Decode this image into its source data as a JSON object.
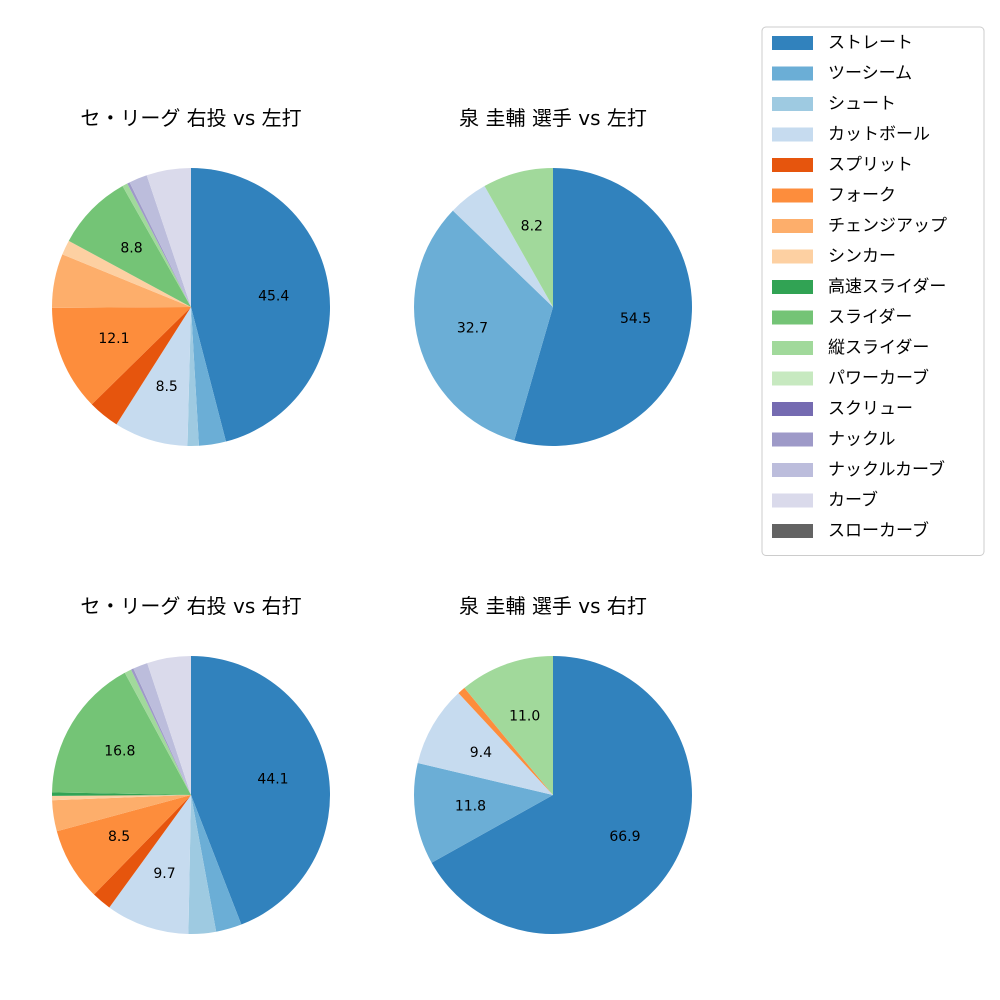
{
  "legend": {
    "placement": "top-right",
    "items": [
      {
        "name": "ストレート",
        "color": "#3182bd"
      },
      {
        "name": "ツーシーム",
        "color": "#6baed6"
      },
      {
        "name": "シュート",
        "color": "#9ecae1"
      },
      {
        "name": "カットボール",
        "color": "#c6dbef"
      },
      {
        "name": "スプリット",
        "color": "#e6550d"
      },
      {
        "name": "フォーク",
        "color": "#fd8d3c"
      },
      {
        "name": "チェンジアップ",
        "color": "#fdae6b"
      },
      {
        "name": "シンカー",
        "color": "#fdd0a2"
      },
      {
        "name": "高速スライダー",
        "color": "#31a354"
      },
      {
        "name": "スライダー",
        "color": "#74c476"
      },
      {
        "name": "縦スライダー",
        "color": "#a1d99b"
      },
      {
        "name": "パワーカーブ",
        "color": "#c7e9c0"
      },
      {
        "name": "スクリュー",
        "color": "#756bb1"
      },
      {
        "name": "ナックル",
        "color": "#9e9ac8"
      },
      {
        "name": "ナックルカーブ",
        "color": "#bcbddc"
      },
      {
        "name": "カーブ",
        "color": "#dadaeb"
      },
      {
        "name": "スローカーブ",
        "color": "#636363"
      }
    ]
  },
  "chart_data": [
    {
      "type": "pie",
      "title": "セ・リーグ 右投 vs 左打",
      "start": "top",
      "direction": "clockwise",
      "slices": [
        {
          "name": "ストレート",
          "value": 45.4,
          "label": "45.4"
        },
        {
          "name": "ツーシーム",
          "value": 3.1,
          "label": ""
        },
        {
          "name": "シュート",
          "value": 1.3,
          "label": ""
        },
        {
          "name": "カットボール",
          "value": 8.5,
          "label": "8.5"
        },
        {
          "name": "スプリット",
          "value": 3.6,
          "label": ""
        },
        {
          "name": "フォーク",
          "value": 12.1,
          "label": "12.1"
        },
        {
          "name": "チェンジアップ",
          "value": 6.2,
          "label": ""
        },
        {
          "name": "シンカー",
          "value": 1.7,
          "label": ""
        },
        {
          "name": "スライダー",
          "value": 8.8,
          "label": "8.8"
        },
        {
          "name": "縦スライダー",
          "value": 0.6,
          "label": ""
        },
        {
          "name": "ナックル",
          "value": 0.3,
          "label": ""
        },
        {
          "name": "ナックルカーブ",
          "value": 2.1,
          "label": ""
        },
        {
          "name": "カーブ",
          "value": 5.1,
          "label": ""
        }
      ]
    },
    {
      "type": "pie",
      "title": "泉 圭輔 選手 vs 左打",
      "start": "top",
      "direction": "clockwise",
      "slices": [
        {
          "name": "ストレート",
          "value": 54.5,
          "label": "54.5"
        },
        {
          "name": "ツーシーム",
          "value": 32.7,
          "label": "32.7"
        },
        {
          "name": "カットボール",
          "value": 4.6,
          "label": ""
        },
        {
          "name": "縦スライダー",
          "value": 8.2,
          "label": "8.2"
        }
      ]
    },
    {
      "type": "pie",
      "title": "セ・リーグ 右投 vs 右打",
      "start": "top",
      "direction": "clockwise",
      "slices": [
        {
          "name": "ストレート",
          "value": 44.1,
          "label": "44.1"
        },
        {
          "name": "ツーシーム",
          "value": 3.0,
          "label": ""
        },
        {
          "name": "シュート",
          "value": 3.2,
          "label": ""
        },
        {
          "name": "カットボール",
          "value": 9.7,
          "label": "9.7"
        },
        {
          "name": "スプリット",
          "value": 2.3,
          "label": ""
        },
        {
          "name": "フォーク",
          "value": 8.5,
          "label": "8.5"
        },
        {
          "name": "チェンジアップ",
          "value": 3.6,
          "label": ""
        },
        {
          "name": "シンカー",
          "value": 0.5,
          "label": ""
        },
        {
          "name": "高速スライダー",
          "value": 0.4,
          "label": ""
        },
        {
          "name": "スライダー",
          "value": 16.8,
          "label": "16.8"
        },
        {
          "name": "縦スライダー",
          "value": 0.8,
          "label": ""
        },
        {
          "name": "ナックル",
          "value": 0.3,
          "label": ""
        },
        {
          "name": "ナックルカーブ",
          "value": 1.7,
          "label": ""
        },
        {
          "name": "カーブ",
          "value": 5.1,
          "label": ""
        }
      ]
    },
    {
      "type": "pie",
      "title": "泉 圭輔 選手 vs 右打",
      "start": "top",
      "direction": "clockwise",
      "slices": [
        {
          "name": "ストレート",
          "value": 66.9,
          "label": "66.9"
        },
        {
          "name": "ツーシーム",
          "value": 11.8,
          "label": "11.8"
        },
        {
          "name": "カットボール",
          "value": 9.4,
          "label": "9.4"
        },
        {
          "name": "フォーク",
          "value": 0.9,
          "label": ""
        },
        {
          "name": "縦スライダー",
          "value": 11.0,
          "label": "11.0"
        }
      ]
    }
  ]
}
